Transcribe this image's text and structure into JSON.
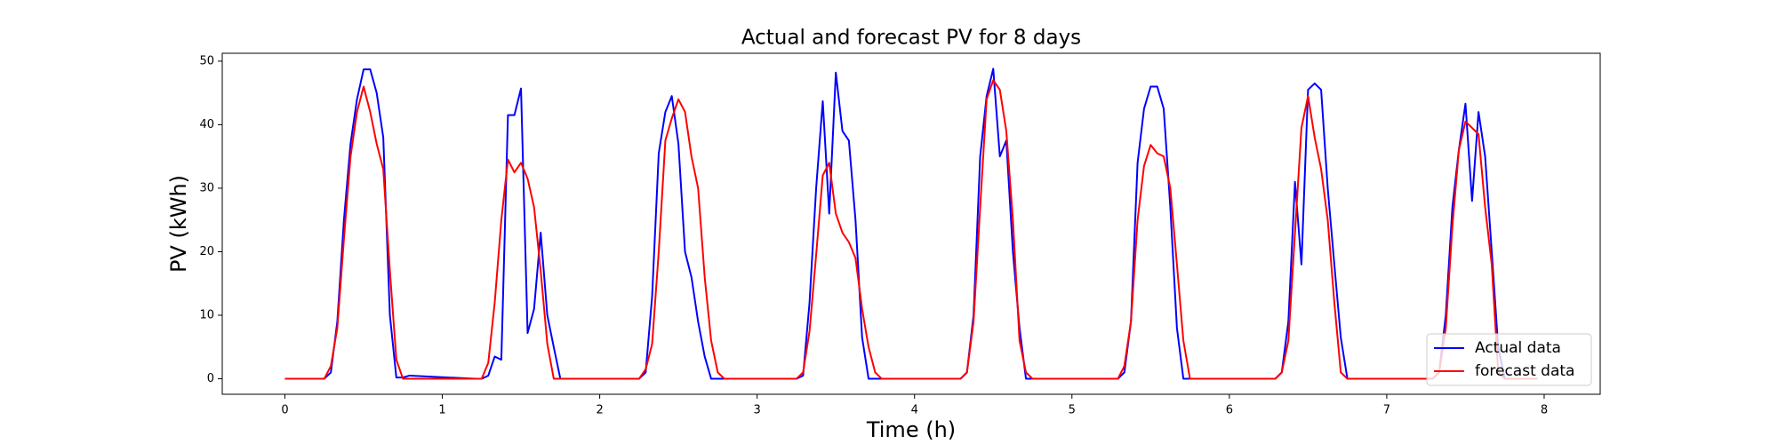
{
  "chart_data": {
    "type": "line",
    "title": "Actual and forecast PV for 8 days",
    "x_label": "Time (h)",
    "y_label": "PV (kWh)",
    "x": [
      0,
      0.208,
      0.25,
      0.292,
      0.333,
      0.375,
      0.417,
      0.458,
      0.5,
      0.542,
      0.583,
      0.625,
      0.667,
      0.708,
      0.75,
      0.792,
      1.208,
      1.25,
      1.292,
      1.333,
      1.375,
      1.417,
      1.458,
      1.5,
      1.542,
      1.583,
      1.625,
      1.667,
      1.708,
      1.75,
      1.792,
      2.208,
      2.25,
      2.292,
      2.333,
      2.375,
      2.417,
      2.458,
      2.5,
      2.542,
      2.583,
      2.625,
      2.667,
      2.708,
      2.75,
      2.792,
      3.208,
      3.25,
      3.292,
      3.333,
      3.375,
      3.417,
      3.458,
      3.5,
      3.542,
      3.583,
      3.625,
      3.667,
      3.708,
      3.75,
      3.792,
      4.208,
      4.25,
      4.292,
      4.333,
      4.375,
      4.417,
      4.458,
      4.5,
      4.542,
      4.583,
      4.625,
      4.667,
      4.708,
      4.75,
      4.792,
      5.208,
      5.25,
      5.292,
      5.333,
      5.375,
      5.417,
      5.458,
      5.5,
      5.542,
      5.583,
      5.625,
      5.667,
      5.708,
      5.75,
      5.792,
      6.208,
      6.25,
      6.292,
      6.333,
      6.375,
      6.417,
      6.458,
      6.5,
      6.542,
      6.583,
      6.625,
      6.667,
      6.708,
      6.75,
      6.792,
      7.208,
      7.25,
      7.292,
      7.333,
      7.375,
      7.417,
      7.458,
      7.5,
      7.542,
      7.583,
      7.625,
      7.667,
      7.708,
      7.75,
      7.792,
      7.958
    ],
    "series": [
      {
        "name": "Actual data",
        "color": "#0000ff",
        "values": [
          0,
          0,
          0,
          1,
          9,
          25,
          37,
          44,
          48.7,
          48.7,
          45,
          38,
          10,
          0.2,
          0.2,
          0.5,
          0,
          0,
          0.5,
          3.5,
          3,
          41.5,
          41.5,
          45.7,
          7.2,
          11,
          23,
          10,
          5,
          0,
          0,
          0,
          0,
          1,
          13,
          35.5,
          42,
          44.5,
          37,
          20,
          16,
          9,
          3.5,
          0,
          0,
          0,
          0,
          0,
          0.5,
          12,
          30,
          43.7,
          26,
          48.2,
          39,
          37.5,
          25,
          6.5,
          0,
          0,
          0,
          0,
          0,
          0,
          1,
          10,
          35,
          44.5,
          48.8,
          35,
          37.5,
          20,
          8,
          0,
          0,
          0,
          0,
          0,
          0,
          1,
          9,
          34,
          42.5,
          46,
          46,
          42.5,
          27,
          8,
          0,
          0,
          0,
          0,
          0,
          0,
          1,
          9,
          31,
          18,
          45.5,
          46.5,
          45.5,
          30,
          18,
          6.5,
          0,
          0,
          0,
          0,
          0,
          1,
          10,
          27,
          36,
          43.3,
          28,
          42,
          35,
          20,
          5,
          0,
          0,
          0
        ]
      },
      {
        "name": "forecast data",
        "color": "#ff0000",
        "values": [
          0,
          0,
          0,
          2,
          8,
          22,
          35,
          42,
          46,
          42,
          37,
          33,
          17,
          3,
          0,
          0,
          0,
          0,
          2.5,
          12,
          25,
          34.5,
          32.5,
          34,
          31.5,
          27,
          17,
          5.5,
          0,
          0,
          0,
          0,
          0,
          1.5,
          5.5,
          20,
          37.5,
          41,
          44,
          42,
          35,
          30,
          16,
          6,
          1,
          0,
          0,
          0,
          1,
          7.5,
          19.5,
          32,
          34,
          26,
          23,
          21.5,
          19,
          11,
          5,
          1,
          0,
          0,
          0,
          0,
          1,
          9,
          27,
          44,
          47,
          45.5,
          39,
          25,
          6,
          1,
          0,
          0,
          0,
          0,
          0,
          2,
          9,
          25,
          33.5,
          36.8,
          35.5,
          35,
          30,
          18,
          6,
          0,
          0,
          0,
          0,
          0,
          1,
          6,
          23,
          39.5,
          44.5,
          38,
          33,
          25,
          12,
          1,
          0,
          0,
          0,
          0,
          0,
          1,
          8,
          24,
          36,
          40.5,
          39.5,
          38.5,
          27,
          18,
          1,
          0,
          0,
          0
        ]
      }
    ],
    "xlim": [
      -0.398,
      8.356
    ],
    "ylim": [
      -2.44,
      51.24
    ],
    "xticks": [
      0,
      1,
      2,
      3,
      4,
      5,
      6,
      7,
      8
    ],
    "yticks": [
      0,
      10,
      20,
      30,
      40,
      50
    ],
    "legend": "lower right"
  }
}
